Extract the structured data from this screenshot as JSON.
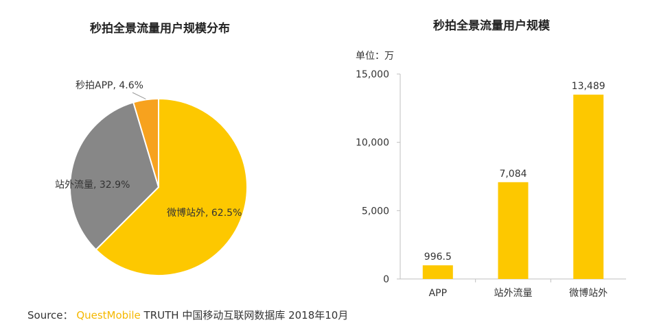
{
  "chart_data": [
    {
      "type": "pie",
      "title": "秒拍全景流量用户规模分布",
      "slices": [
        {
          "label": "微博站外",
          "value": 62.5,
          "value_label": "62.5%",
          "color": "#fdc800"
        },
        {
          "label": "站外流量",
          "value": 32.9,
          "value_label": "32.9%",
          "color": "#878787"
        },
        {
          "label": "秒拍APP",
          "value": 4.6,
          "value_label": "4.6%",
          "color": "#f7a21e"
        }
      ]
    },
    {
      "type": "bar",
      "title": "秒拍全景流量用户规模",
      "unit_label": "单位：万",
      "categories": [
        "APP",
        "站外流量",
        "微博站外"
      ],
      "values": [
        996.5,
        7084,
        13489
      ],
      "value_labels": [
        "996.5",
        "7,084",
        "13,489"
      ],
      "ylim": [
        0,
        15000
      ],
      "yticks": [
        0,
        5000,
        10000,
        15000
      ],
      "ytick_labels": [
        "0",
        "5,000",
        "10,000",
        "15,000"
      ],
      "bar_color": "#fdc800",
      "grid": false
    }
  ],
  "source": {
    "prefix": "Source：",
    "brand": "QuestMobile",
    "suffix": "TRUTH 中国移动互联网数据库 2018年10月"
  },
  "colors": {
    "brand": "#f5b800"
  }
}
